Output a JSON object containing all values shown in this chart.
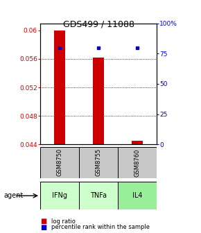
{
  "title": "GDS499 / 11088",
  "samples": [
    "GSM8750",
    "GSM8755",
    "GSM8760"
  ],
  "agents": [
    "IFNg",
    "TNFa",
    "IL4"
  ],
  "bar_values": [
    0.06,
    0.0562,
    0.0445
  ],
  "bar_base": 0.044,
  "pct_values": [
    80,
    80,
    80
  ],
  "ylim": [
    0.044,
    0.061
  ],
  "yticks": [
    0.044,
    0.048,
    0.052,
    0.056,
    0.06
  ],
  "ytick_labels": [
    "0.044",
    "0.048",
    "0.052",
    "0.056",
    "0.06"
  ],
  "right_yticks": [
    0,
    25,
    50,
    75,
    100
  ],
  "right_ytick_labels": [
    "0",
    "25",
    "50",
    "75",
    "100%"
  ],
  "bar_color": "#cc0000",
  "dot_color": "#0000cc",
  "sample_box_color": "#c8c8c8",
  "agent_colors": [
    "#ccffcc",
    "#ccffcc",
    "#99ee99"
  ],
  "left_axis_color": "#cc0000",
  "right_axis_color": "#0000cc",
  "legend_bar_label": "log ratio",
  "legend_dot_label": "percentile rank within the sample",
  "fig_width": 2.9,
  "fig_height": 3.36,
  "dpi": 100
}
